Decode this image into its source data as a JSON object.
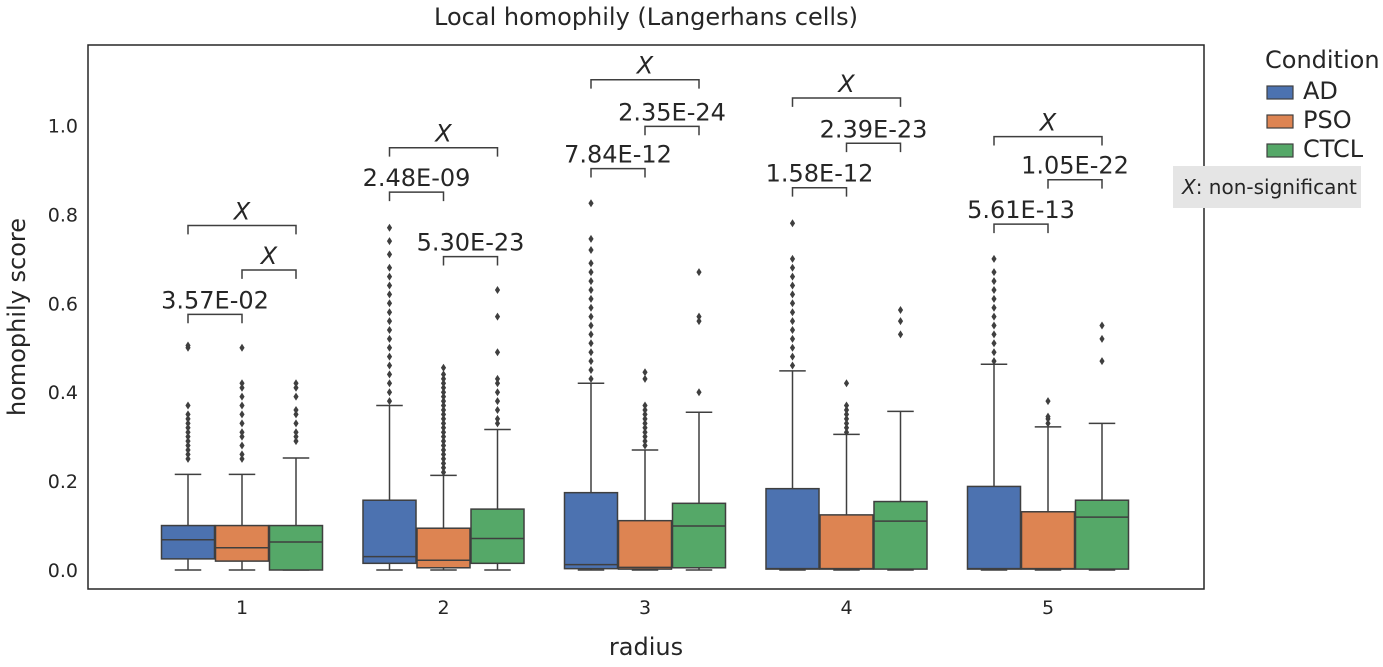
{
  "chart_data": {
    "type": "box",
    "title": "Local homophily (Langerhans cells)",
    "xlabel": "radius",
    "ylabel": "homophily score",
    "categories": [
      "1",
      "2",
      "3",
      "4",
      "5"
    ],
    "ylim": [
      -0.04,
      1.19
    ],
    "yticks": [
      "0.0",
      "0.2",
      "0.4",
      "0.6",
      "0.8",
      "1.0"
    ],
    "grid": false,
    "legend": {
      "title": "Condition",
      "placement": "outside-top-right",
      "entries": [
        "AD",
        "PSO",
        "CTCL"
      ]
    },
    "colors": {
      "AD": "#4c72b0",
      "PSO": "#dd8452",
      "CTCL": "#55a868"
    },
    "note": {
      "symbol": "X",
      "text": ": non-significant"
    },
    "series": [
      {
        "name": "AD",
        "boxes": [
          {
            "q1": 0.025,
            "median": 0.068,
            "q3": 0.1,
            "whislo": 0.0,
            "whishi": 0.215,
            "outliers": [
              0.25,
              0.26,
              0.27,
              0.28,
              0.29,
              0.3,
              0.31,
              0.32,
              0.33,
              0.34,
              0.35,
              0.37,
              0.5,
              0.505
            ]
          },
          {
            "q1": 0.015,
            "median": 0.03,
            "q3": 0.157,
            "whislo": 0.0,
            "whishi": 0.37,
            "outliers": [
              0.38,
              0.4,
              0.42,
              0.44,
              0.46,
              0.48,
              0.5,
              0.52,
              0.54,
              0.56,
              0.58,
              0.6,
              0.62,
              0.64,
              0.66,
              0.68,
              0.71,
              0.74,
              0.77
            ]
          },
          {
            "q1": 0.003,
            "median": 0.012,
            "q3": 0.174,
            "whislo": 0.0,
            "whishi": 0.42,
            "outliers": [
              0.43,
              0.45,
              0.47,
              0.49,
              0.51,
              0.53,
              0.55,
              0.57,
              0.59,
              0.61,
              0.63,
              0.65,
              0.67,
              0.69,
              0.72,
              0.745,
              0.825
            ]
          },
          {
            "q1": 0.002,
            "median": 0.003,
            "q3": 0.183,
            "whislo": 0.0,
            "whishi": 0.448,
            "outliers": [
              0.46,
              0.48,
              0.5,
              0.52,
              0.54,
              0.56,
              0.58,
              0.6,
              0.62,
              0.64,
              0.66,
              0.68,
              0.7,
              0.78
            ]
          },
          {
            "q1": 0.002,
            "median": 0.003,
            "q3": 0.188,
            "whislo": 0.0,
            "whishi": 0.463,
            "outliers": [
              0.47,
              0.49,
              0.51,
              0.53,
              0.55,
              0.57,
              0.59,
              0.61,
              0.63,
              0.65,
              0.67,
              0.7
            ]
          }
        ]
      },
      {
        "name": "PSO",
        "boxes": [
          {
            "q1": 0.02,
            "median": 0.05,
            "q3": 0.1,
            "whislo": 0.0,
            "whishi": 0.215,
            "outliers": [
              0.25,
              0.26,
              0.28,
              0.3,
              0.31,
              0.33,
              0.35,
              0.37,
              0.39,
              0.41,
              0.42,
              0.5
            ]
          },
          {
            "q1": 0.005,
            "median": 0.022,
            "q3": 0.094,
            "whislo": 0.0,
            "whishi": 0.213,
            "outliers": [
              0.22,
              0.23,
              0.24,
              0.25,
              0.26,
              0.27,
              0.28,
              0.29,
              0.3,
              0.31,
              0.32,
              0.33,
              0.34,
              0.35,
              0.36,
              0.37,
              0.38,
              0.39,
              0.4,
              0.41,
              0.42,
              0.43,
              0.44,
              0.455
            ]
          },
          {
            "q1": 0.002,
            "median": 0.006,
            "q3": 0.111,
            "whislo": 0.0,
            "whishi": 0.27,
            "outliers": [
              0.28,
              0.29,
              0.3,
              0.31,
              0.32,
              0.33,
              0.34,
              0.35,
              0.36,
              0.37,
              0.43,
              0.445
            ]
          },
          {
            "q1": 0.002,
            "median": 0.003,
            "q3": 0.124,
            "whislo": 0.0,
            "whishi": 0.305,
            "outliers": [
              0.31,
              0.32,
              0.33,
              0.34,
              0.35,
              0.36,
              0.37,
              0.42
            ]
          },
          {
            "q1": 0.002,
            "median": 0.003,
            "q3": 0.131,
            "whislo": 0.0,
            "whishi": 0.322,
            "outliers": [
              0.33,
              0.34,
              0.345,
              0.38
            ]
          }
        ]
      },
      {
        "name": "CTCL",
        "boxes": [
          {
            "q1": 0.0,
            "median": 0.063,
            "q3": 0.1,
            "whislo": 0.0,
            "whishi": 0.252,
            "outliers": [
              0.29,
              0.3,
              0.31,
              0.33,
              0.35,
              0.36,
              0.39,
              0.41,
              0.42
            ]
          },
          {
            "q1": 0.015,
            "median": 0.071,
            "q3": 0.137,
            "whislo": 0.0,
            "whishi": 0.316,
            "outliers": [
              0.33,
              0.34,
              0.36,
              0.38,
              0.4,
              0.42,
              0.43,
              0.49,
              0.57,
              0.63
            ]
          },
          {
            "q1": 0.005,
            "median": 0.099,
            "q3": 0.15,
            "whislo": 0.0,
            "whishi": 0.355,
            "outliers": [
              0.4,
              0.56,
              0.57,
              0.67
            ]
          },
          {
            "q1": 0.002,
            "median": 0.11,
            "q3": 0.154,
            "whislo": 0.0,
            "whishi": 0.357,
            "outliers": [
              0.53,
              0.56,
              0.585
            ]
          },
          {
            "q1": 0.002,
            "median": 0.119,
            "q3": 0.157,
            "whislo": 0.0,
            "whishi": 0.33,
            "outliers": [
              0.47,
              0.52,
              0.55
            ]
          }
        ]
      }
    ],
    "annotations": [
      {
        "category": "1",
        "pair": [
          "AD",
          "PSO"
        ],
        "label": "3.57E-02",
        "y": 0.575,
        "height": 0.02
      },
      {
        "category": "1",
        "pair": [
          "PSO",
          "CTCL"
        ],
        "label": "X",
        "y": 0.675,
        "height": 0.02
      },
      {
        "category": "1",
        "pair": [
          "AD",
          "CTCL"
        ],
        "label": "X",
        "y": 0.775,
        "height": 0.02
      },
      {
        "category": "2",
        "pair": [
          "PSO",
          "CTCL"
        ],
        "label": "5.30E-23",
        "y": 0.705,
        "height": 0.02
      },
      {
        "category": "2",
        "pair": [
          "AD",
          "PSO"
        ],
        "label": "2.48E-09",
        "y": 0.85,
        "height": 0.02
      },
      {
        "category": "2",
        "pair": [
          "AD",
          "CTCL"
        ],
        "label": "X",
        "y": 0.95,
        "height": 0.02
      },
      {
        "category": "3",
        "pair": [
          "AD",
          "PSO"
        ],
        "label": "7.84E-12",
        "y": 0.903,
        "height": 0.02
      },
      {
        "category": "3",
        "pair": [
          "PSO",
          "CTCL"
        ],
        "label": "2.35E-24",
        "y": 0.998,
        "height": 0.02
      },
      {
        "category": "3",
        "pair": [
          "AD",
          "CTCL"
        ],
        "label": "X",
        "y": 1.103,
        "height": 0.02
      },
      {
        "category": "4",
        "pair": [
          "AD",
          "PSO"
        ],
        "label": "1.58E-12",
        "y": 0.86,
        "height": 0.02
      },
      {
        "category": "4",
        "pair": [
          "PSO",
          "CTCL"
        ],
        "label": "2.39E-23",
        "y": 0.96,
        "height": 0.02
      },
      {
        "category": "4",
        "pair": [
          "AD",
          "CTCL"
        ],
        "label": "X",
        "y": 1.062,
        "height": 0.02
      },
      {
        "category": "5",
        "pair": [
          "AD",
          "PSO"
        ],
        "label": "5.61E-13",
        "y": 0.778,
        "height": 0.02
      },
      {
        "category": "5",
        "pair": [
          "PSO",
          "CTCL"
        ],
        "label": "1.05E-22",
        "y": 0.878,
        "height": 0.02
      },
      {
        "category": "5",
        "pair": [
          "AD",
          "CTCL"
        ],
        "label": "X",
        "y": 0.975,
        "height": 0.02
      }
    ]
  }
}
